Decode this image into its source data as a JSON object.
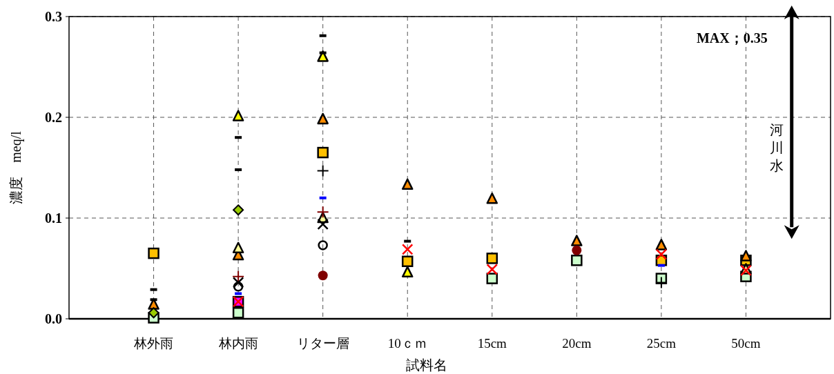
{
  "chart_data": {
    "type": "scatter",
    "xlabel": "試料名",
    "ylabel": "濃度　meq/l",
    "categories": [
      "林外雨",
      "林内雨",
      "リター層",
      "10ｃｍ",
      "15cm",
      "20cm",
      "25cm",
      "50cm"
    ],
    "ylim": [
      0,
      0.3
    ],
    "yticks": [
      {
        "value": 0,
        "label": "0.0"
      },
      {
        "value": 0.1,
        "label": "0.1"
      },
      {
        "value": 0.2,
        "label": "0.2"
      },
      {
        "value": 0.3,
        "label": "0.3"
      }
    ],
    "grid": true,
    "annotations": [
      "MAX；0.35",
      "河川水"
    ],
    "series": [
      {
        "color": "#ccffcc",
        "marker": "square",
        "values": [
          0.001,
          0.006,
          null,
          null,
          0.04,
          0.058,
          0.04,
          0.042
        ]
      },
      {
        "color": "#ffc000",
        "marker": "square",
        "values": [
          0.065,
          null,
          0.165,
          0.057,
          0.06,
          null,
          0.058,
          0.058
        ]
      },
      {
        "color": "#ff00ff",
        "marker": "square",
        "values": [
          null,
          0.017,
          null,
          null,
          null,
          null,
          null,
          null
        ]
      },
      {
        "color": "#ff8c00",
        "marker": "triangle",
        "values": [
          0.014,
          0.063,
          0.198,
          0.133,
          0.119,
          0.077,
          0.073,
          0.062
        ]
      },
      {
        "color": "#ffff00",
        "marker": "triangle",
        "values": [
          null,
          0.201,
          0.26,
          0.046,
          null,
          null,
          null,
          null
        ]
      },
      {
        "color": "#ffff99",
        "marker": "triangle",
        "values": [
          null,
          0.07,
          0.1,
          null,
          null,
          null,
          null,
          0.049
        ]
      },
      {
        "color": "#99cc00",
        "marker": "diamond",
        "values": [
          0.006,
          0.108,
          null,
          null,
          null,
          null,
          null,
          null
        ]
      },
      {
        "color": "#800000",
        "marker": "circle",
        "values": [
          null,
          null,
          0.043,
          null,
          null,
          0.068,
          null,
          null
        ]
      },
      {
        "color": "#000000",
        "values": [
          0.019,
          0.18,
          0.281,
          0.077,
          null,
          null,
          null,
          null
        ]
      },
      {
        "color": "#000000",
        "values": [
          0.029,
          0.148,
          0.264,
          null,
          null,
          null,
          null,
          null
        ]
      },
      {
        "color": "#0000ff",
        "values": [
          null,
          0.025,
          0.12,
          null,
          null,
          null,
          0.053,
          null
        ]
      },
      {
        "color": "#000000",
        "marker": "plus",
        "values": [
          null,
          null,
          0.147,
          null,
          null,
          null,
          0.036,
          null
        ]
      },
      {
        "color": "#800000",
        "marker": "plus",
        "values": [
          null,
          0.042,
          0.106,
          null,
          null,
          null,
          null,
          null
        ]
      },
      {
        "color": "#000000",
        "marker": "cross",
        "values": [
          null,
          0.036,
          0.094,
          null,
          null,
          null,
          null,
          null
        ]
      },
      {
        "color": "#000000",
        "marker": "open-circle",
        "values": [
          null,
          0.032,
          0.073,
          null,
          null,
          null,
          null,
          null
        ]
      },
      {
        "color": "#ff0000",
        "marker": "cross",
        "values": [
          null,
          0.017,
          null,
          0.069,
          0.049,
          null,
          0.064,
          0.048
        ]
      }
    ]
  }
}
